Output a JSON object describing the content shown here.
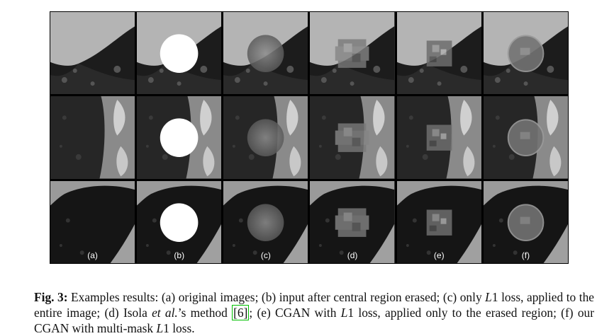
{
  "figure": {
    "columns": [
      {
        "label": "(a)",
        "kind": "original"
      },
      {
        "label": "(b)",
        "kind": "erased"
      },
      {
        "label": "(c)",
        "kind": "l1-entire"
      },
      {
        "label": "(d)",
        "kind": "isola"
      },
      {
        "label": "(e)",
        "kind": "cgan-l1-erased"
      },
      {
        "label": "(f)",
        "kind": "cgan-multimask"
      }
    ],
    "rows": [
      {
        "scene": "lung-top"
      },
      {
        "scene": "rib-middle"
      },
      {
        "scene": "lung-bottom"
      }
    ]
  },
  "caption": {
    "fig": "Fig. 3:",
    "p1": " Examples results: (a) original images; (b) input after central region erased; (c) only ",
    "l1a": "L",
    "n1a": "1",
    "p2": " loss, applied to the entire image; (d) Isola ",
    "etal": "et al.",
    "p3": "’s method ",
    "ref": "[6]",
    "p4": "; (e) CGAN with ",
    "l1b": "L",
    "n1b": "1",
    "p5": " loss, applied only to the erased region; (f) our CGAN with multi-mask ",
    "l1c": "L",
    "n1c": "1",
    "p6": " loss."
  }
}
